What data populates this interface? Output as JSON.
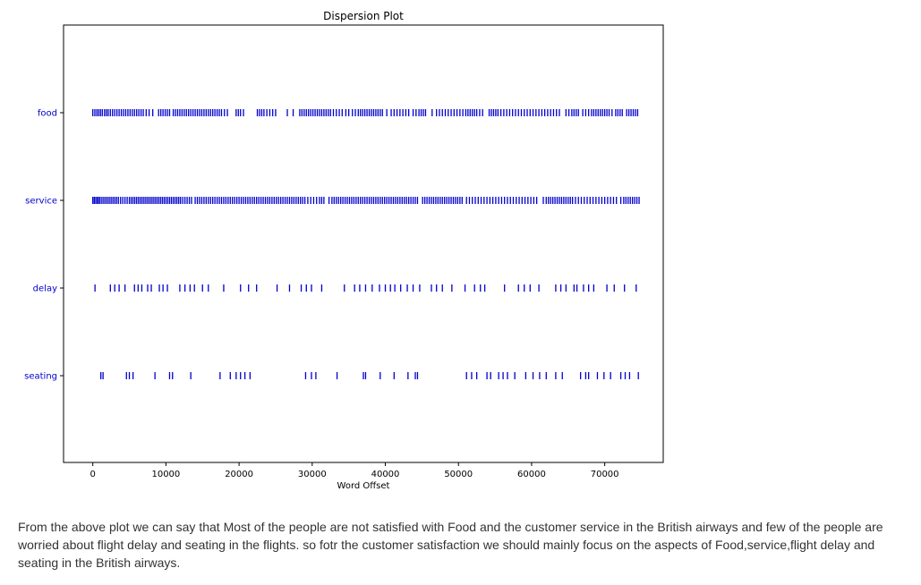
{
  "chart_data": {
    "type": "scatter",
    "title": "Dispersion Plot",
    "xlabel": "Word Offset",
    "ylabel": "",
    "xlim": [
      -4000,
      78000
    ],
    "xticks": [
      0,
      10000,
      20000,
      30000,
      40000,
      50000,
      60000,
      70000
    ],
    "categories": [
      "food",
      "service",
      "delay",
      "seating"
    ],
    "grid": false,
    "marker": "|",
    "colors": {
      "marker": "#0000cc",
      "label": "#0000cc"
    },
    "series": [
      {
        "name": "food",
        "offsets": [
          0,
          280,
          550,
          800,
          1050,
          1300,
          1600,
          1850,
          2100,
          2400,
          2700,
          3000,
          3300,
          3600,
          3900,
          4200,
          4500,
          4800,
          5100,
          5400,
          5700,
          6000,
          6300,
          6600,
          6900,
          7300,
          7700,
          8200,
          9000,
          9300,
          9600,
          9900,
          10200,
          10500,
          11000,
          11300,
          11600,
          11900,
          12200,
          12500,
          12800,
          13100,
          13400,
          13700,
          14000,
          14300,
          14600,
          14900,
          15200,
          15500,
          15800,
          16100,
          16400,
          16700,
          17000,
          17300,
          17600,
          18000,
          18400,
          19600,
          19900,
          20200,
          20600,
          22500,
          22800,
          23100,
          23400,
          23800,
          24200,
          24600,
          25000,
          26600,
          27400,
          28300,
          28600,
          28900,
          29200,
          29500,
          29800,
          30100,
          30400,
          30700,
          31000,
          31300,
          31600,
          31900,
          32200,
          32500,
          32900,
          33300,
          33700,
          34100,
          34600,
          35000,
          35500,
          35900,
          36300,
          36600,
          36900,
          37200,
          37500,
          37800,
          38100,
          38400,
          38700,
          39000,
          39300,
          39600,
          40200,
          40800,
          41200,
          41600,
          42000,
          42400,
          42800,
          43200,
          43800,
          44200,
          44600,
          44900,
          45200,
          45500,
          46400,
          47000,
          47400,
          47800,
          48200,
          48600,
          49000,
          49400,
          49800,
          50200,
          50600,
          51000,
          51300,
          51600,
          51900,
          52200,
          52500,
          52900,
          53300,
          54200,
          54500,
          54800,
          55100,
          55400,
          55800,
          56200,
          56600,
          57000,
          57400,
          57800,
          58200,
          58600,
          59000,
          59400,
          59800,
          60200,
          60600,
          61000,
          61400,
          61800,
          62200,
          62600,
          63000,
          63400,
          63800,
          64700,
          65100,
          65500,
          65800,
          66100,
          66400,
          67000,
          67400,
          67800,
          68200,
          68500,
          68800,
          69100,
          69400,
          69700,
          70000,
          70300,
          70600,
          71000,
          71500,
          71800,
          72100,
          72400,
          73000,
          73300,
          73600,
          73900,
          74200,
          74500
        ]
      },
      {
        "name": "service",
        "offsets": [
          0,
          200,
          400,
          600,
          800,
          1000,
          1250,
          1500,
          1750,
          2000,
          2250,
          2500,
          2750,
          3000,
          3250,
          3500,
          3800,
          4100,
          4400,
          4700,
          5000,
          5250,
          5500,
          5750,
          6000,
          6250,
          6500,
          6750,
          7000,
          7250,
          7500,
          7750,
          8000,
          8250,
          8500,
          8750,
          9000,
          9250,
          9500,
          9750,
          10000,
          10250,
          10500,
          10750,
          11000,
          11250,
          11500,
          11750,
          12000,
          12300,
          12600,
          12900,
          13200,
          13500,
          14000,
          14300,
          14600,
          14900,
          15200,
          15500,
          15800,
          16100,
          16400,
          16700,
          17000,
          17300,
          17600,
          17900,
          18200,
          18500,
          18800,
          19100,
          19400,
          19700,
          20000,
          20300,
          20600,
          20900,
          21200,
          21500,
          21800,
          22100,
          22400,
          22700,
          23000,
          23300,
          23600,
          23900,
          24200,
          24500,
          24800,
          25100,
          25400,
          25700,
          26000,
          26300,
          26600,
          26900,
          27200,
          27500,
          27800,
          28100,
          28400,
          28700,
          29000,
          29400,
          29800,
          30200,
          30600,
          31000,
          31300,
          31600,
          32300,
          32700,
          33000,
          33300,
          33600,
          33900,
          34200,
          34500,
          34800,
          35100,
          35400,
          35700,
          36000,
          36300,
          36600,
          36900,
          37200,
          37500,
          37800,
          38100,
          38400,
          38700,
          39000,
          39300,
          39600,
          39900,
          40200,
          40500,
          40800,
          41100,
          41400,
          41700,
          42000,
          42300,
          42600,
          42900,
          43200,
          43500,
          43800,
          44100,
          44400,
          45100,
          45400,
          45700,
          46000,
          46300,
          46600,
          46900,
          47200,
          47500,
          47800,
          48100,
          48400,
          48700,
          49000,
          49300,
          49600,
          49900,
          50200,
          50500,
          51100,
          51500,
          51900,
          52300,
          52700,
          53100,
          53500,
          53900,
          54300,
          54700,
          55100,
          55500,
          55900,
          56300,
          56700,
          57100,
          57500,
          57900,
          58300,
          58700,
          59100,
          59500,
          59900,
          60300,
          60700,
          61600,
          62000,
          62300,
          62600,
          62900,
          63200,
          63500,
          63800,
          64100,
          64400,
          64700,
          65000,
          65300,
          65600,
          66000,
          66400,
          66800,
          67200,
          67600,
          68000,
          68400,
          68800,
          69200,
          69600,
          70000,
          70400,
          70800,
          71200,
          71600,
          72200,
          72600,
          72900,
          73200,
          73500,
          73800,
          74100,
          74400,
          74700
        ]
      },
      {
        "name": "delay",
        "offsets": [
          300,
          2400,
          3000,
          3600,
          4400,
          5700,
          6200,
          6700,
          7500,
          8000,
          9100,
          9600,
          10200,
          11900,
          12600,
          13300,
          13900,
          15000,
          15800,
          17900,
          20200,
          21300,
          22400,
          25200,
          26900,
          28500,
          29200,
          29900,
          31300,
          34400,
          35800,
          36500,
          37300,
          38200,
          39200,
          40000,
          40700,
          41300,
          42100,
          43000,
          43800,
          44700,
          46300,
          47000,
          47800,
          49100,
          50900,
          52200,
          53000,
          53600,
          56300,
          58200,
          59000,
          59800,
          61000,
          63300,
          64000,
          64700,
          65800,
          66200,
          67100,
          67800,
          68500,
          70300,
          71300,
          72700,
          74300
        ]
      },
      {
        "name": "seating",
        "offsets": [
          1100,
          1400,
          4600,
          5000,
          5500,
          8500,
          10500,
          10900,
          13400,
          17400,
          18800,
          19600,
          20200,
          20800,
          21500,
          29100,
          29900,
          30500,
          33400,
          37000,
          37300,
          39300,
          41200,
          43100,
          44100,
          44400,
          51100,
          51800,
          52500,
          53900,
          54400,
          55500,
          56100,
          56700,
          57700,
          59200,
          60200,
          61100,
          62000,
          63300,
          64200,
          66700,
          67400,
          67800,
          69000,
          69900,
          70800,
          72200,
          72800,
          73400,
          74600
        ]
      }
    ]
  },
  "caption": "From the above plot we can say that Most of the people are not satisfied with Food and the customer service in the British airways and few of the people are worried about flight delay and seating in the flights. so fotr the customer satisfaction we should mainly focus on the aspects of Food,service,flight delay and seating in the British airways."
}
